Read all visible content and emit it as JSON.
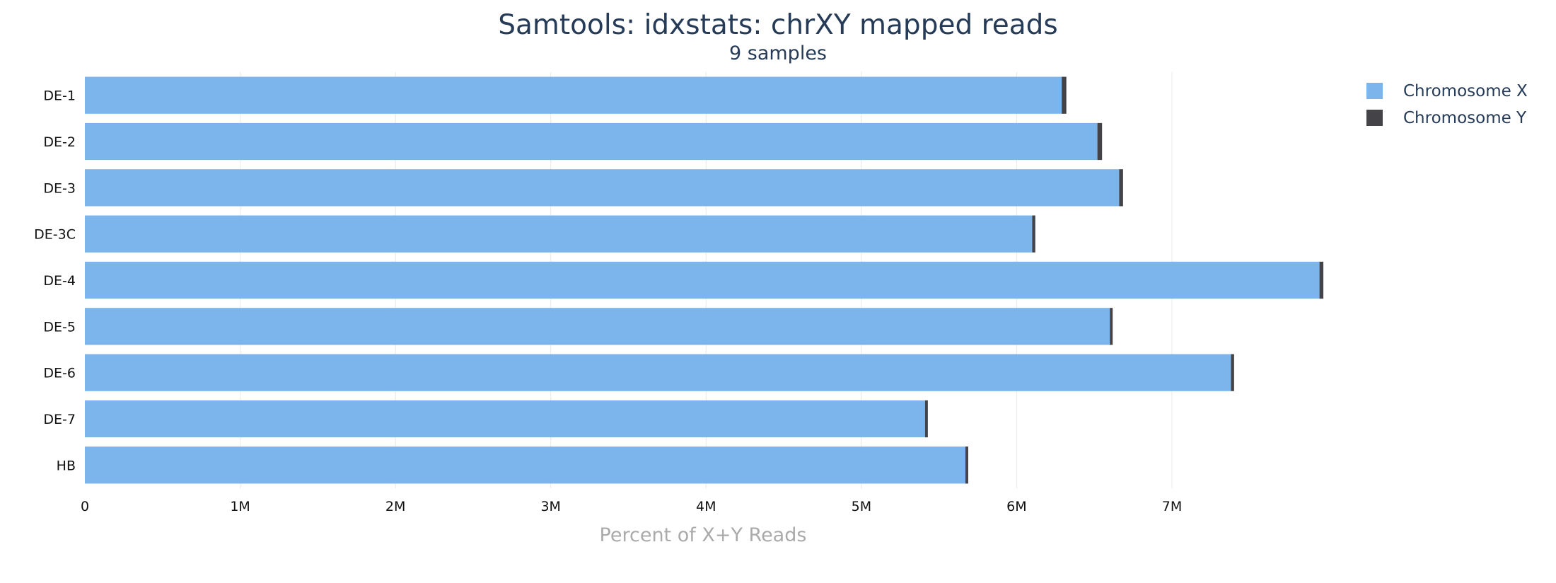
{
  "chart_data": {
    "type": "bar",
    "orientation": "horizontal",
    "stacked": true,
    "title": "Samtools: idxstats: chrXY mapped reads",
    "subtitle": "9 samples",
    "xlabel": "Percent of X+Y Reads",
    "ylabel": "",
    "xlim": [
      0,
      8000000
    ],
    "x_ticks": [
      {
        "value": 0,
        "label": "0"
      },
      {
        "value": 1000000,
        "label": "1M"
      },
      {
        "value": 2000000,
        "label": "2M"
      },
      {
        "value": 3000000,
        "label": "3M"
      },
      {
        "value": 4000000,
        "label": "4M"
      },
      {
        "value": 5000000,
        "label": "5M"
      },
      {
        "value": 6000000,
        "label": "6M"
      },
      {
        "value": 7000000,
        "label": "7M"
      }
    ],
    "grid": true,
    "legend_position": "top-right",
    "categories": [
      "DE-1",
      "DE-2",
      "DE-3",
      "DE-3C",
      "DE-4",
      "DE-5",
      "DE-6",
      "DE-7",
      "HB"
    ],
    "series": [
      {
        "name": "Chromosome X",
        "color": "#7cb5ec",
        "values": [
          6290000,
          6520000,
          6660000,
          6100000,
          7950000,
          6600000,
          7380000,
          5410000,
          5670000
        ]
      },
      {
        "name": "Chromosome Y",
        "color": "#434348",
        "values": [
          30000,
          30000,
          25000,
          20000,
          25000,
          15000,
          20000,
          12000,
          15000
        ]
      }
    ]
  }
}
